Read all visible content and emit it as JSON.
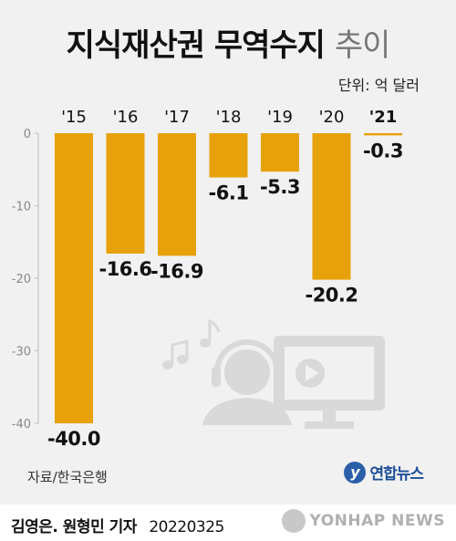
{
  "title": "지식재산권 무역수지",
  "subtitle": "추이",
  "unit_label": "단위: 억 달러",
  "source": "자료/한국은행",
  "logo_text": "연합뉴스",
  "byline": "김영은. 원형민 기자",
  "date": "20220325",
  "watermark": "YONHAP NEWS",
  "colors": {
    "bar": "#e7a10b",
    "panel": "#f1f1f1",
    "axis": "#bdbdbd",
    "illustration": "#d9d9d9"
  },
  "chart_data": {
    "type": "bar",
    "categories": [
      "'15",
      "'16",
      "'17",
      "'18",
      "'19",
      "'20",
      "'21"
    ],
    "values": [
      -40.0,
      -16.6,
      -16.9,
      -6.1,
      -5.3,
      -20.2,
      -0.3
    ],
    "value_labels": [
      "-40.0",
      "-16.6",
      "-16.9",
      "-6.1",
      "-5.3",
      "-20.2",
      "-0.3"
    ],
    "yticks": [
      "0",
      "-10",
      "-20",
      "-30",
      "-40"
    ],
    "ytick_values": [
      0,
      -10,
      -20,
      -30,
      -40
    ],
    "ylim": [
      -40,
      0
    ],
    "grid": false,
    "highlighted_category": "'21"
  }
}
